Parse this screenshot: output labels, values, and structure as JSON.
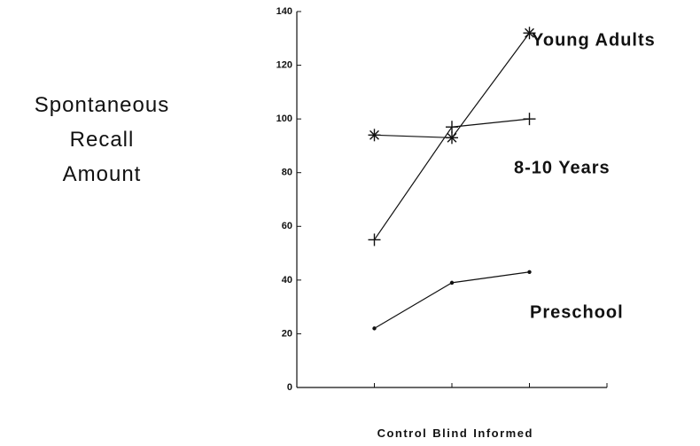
{
  "chart_data": {
    "type": "line",
    "ylabel": "Spontaneous Recall Amount",
    "categories": [
      "Control",
      "Blind",
      "Informed"
    ],
    "series": [
      {
        "name": "Young Adults",
        "marker": "asterisk",
        "color": "#111111",
        "values": [
          94,
          93,
          132
        ]
      },
      {
        "name": "8-10 Years",
        "marker": "plus",
        "color": "#111111",
        "values": [
          55,
          97,
          100
        ]
      },
      {
        "name": "Preschool",
        "marker": "dot",
        "color": "#111111",
        "values": [
          22,
          39,
          43
        ]
      }
    ],
    "ylim": [
      0,
      140
    ],
    "yticks": [
      0,
      20,
      40,
      60,
      80,
      100,
      120,
      140
    ],
    "grid": false
  }
}
